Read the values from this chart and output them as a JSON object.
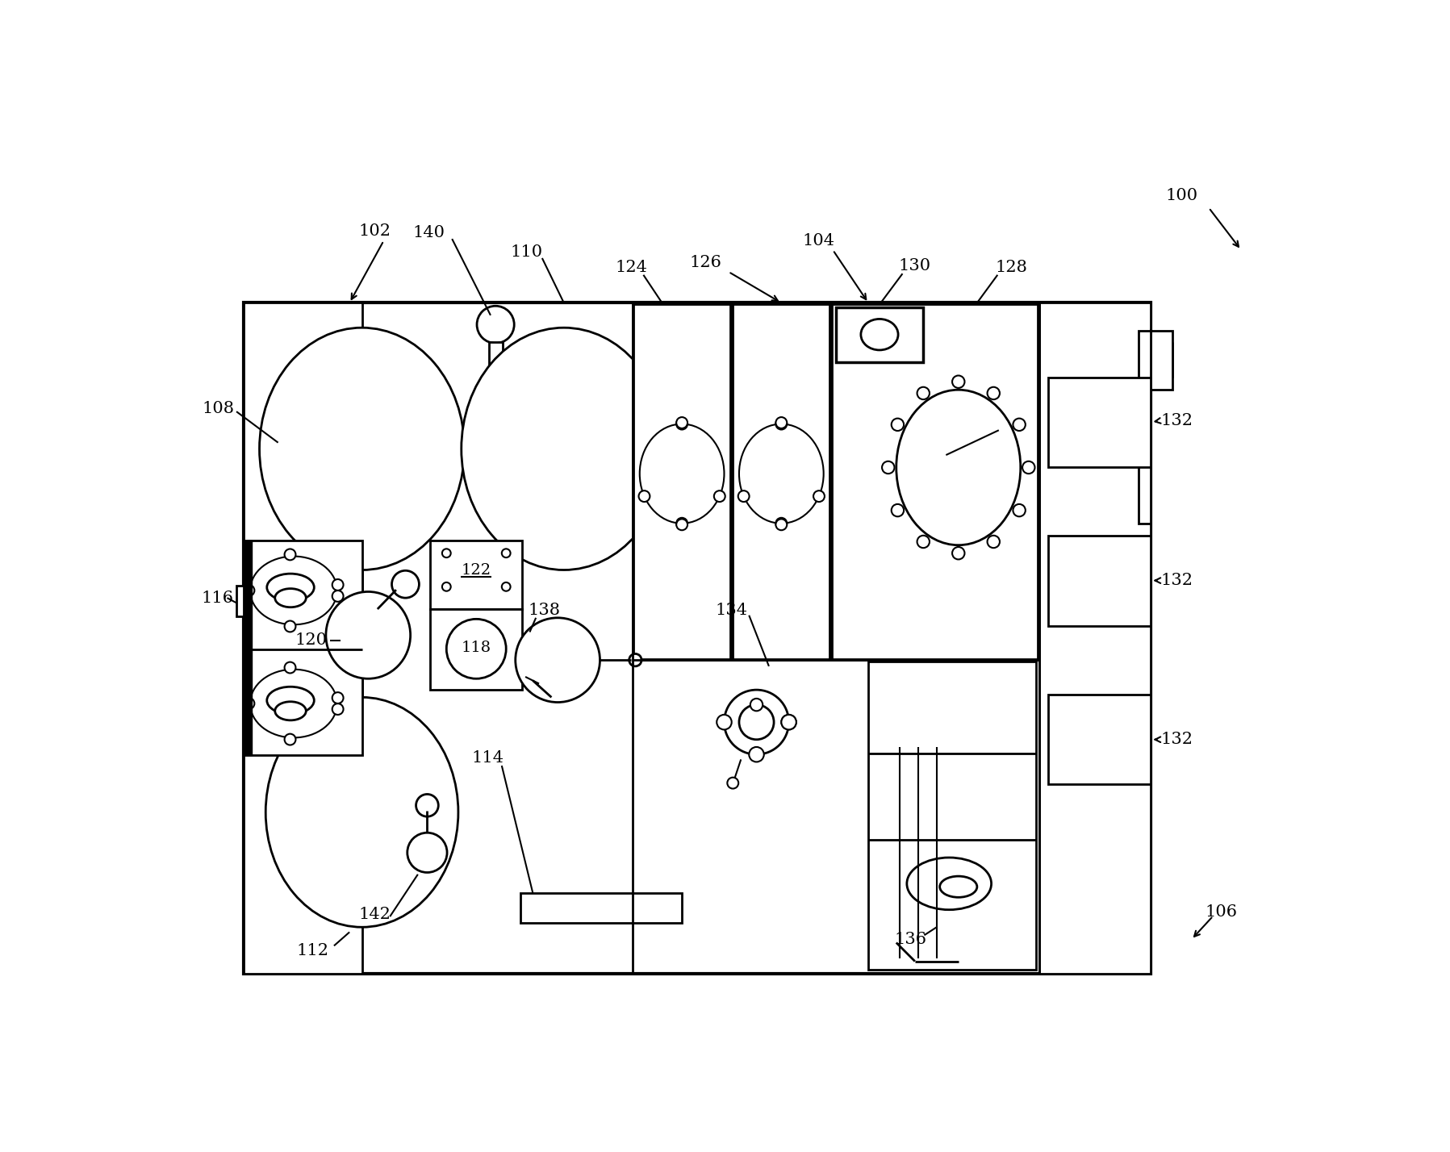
{
  "bg": "#ffffff",
  "lc": "#000000",
  "fw": 17.97,
  "fh": 14.28,
  "dpi": 100
}
